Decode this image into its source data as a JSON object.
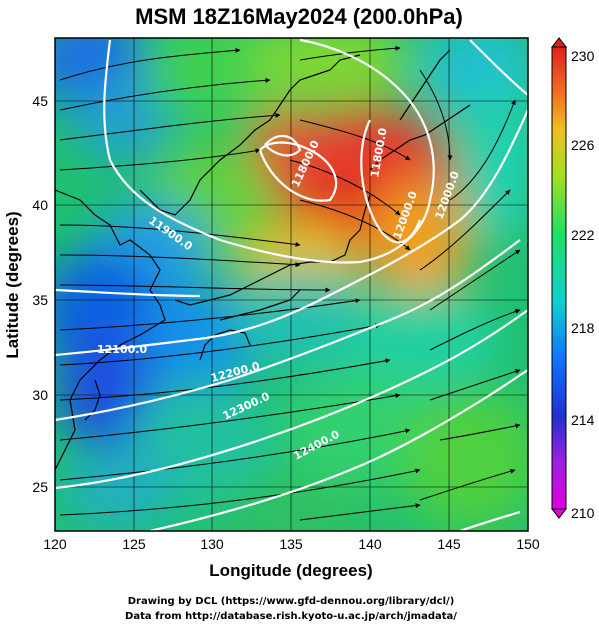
{
  "title": "MSM 18Z16May2024 (200.0hPa)",
  "axes": {
    "xlabel": "Longitude (degrees)",
    "ylabel": "Latitude  (degrees)",
    "xlim": [
      120,
      150
    ],
    "ylim": [
      22.5,
      48
    ],
    "xticks": [
      "120",
      "125",
      "130",
      "135",
      "140",
      "145",
      "150"
    ],
    "yticks": [
      "25",
      "30",
      "35",
      "40",
      "45"
    ]
  },
  "colorbar": {
    "min": 210,
    "max": 230,
    "ticks": [
      "230",
      "226",
      "222",
      "218",
      "214",
      "210"
    ]
  },
  "contour_labels": [
    "11900.0",
    "12100.0",
    "12200.0",
    "12300.0",
    "12400.0",
    "11800.0",
    "11800.0",
    "12000.0",
    "12000.0"
  ],
  "credits": {
    "line1": "Drawing by DCL (https://www.gfd-dennou.org/library/dcl/)",
    "line2": "Data from http://database.rish.kyoto-u.ac.jp/arch/jmadata/"
  },
  "colors": {
    "frame": "#000000",
    "contour": "#ffffff",
    "coast": "#000000"
  }
}
